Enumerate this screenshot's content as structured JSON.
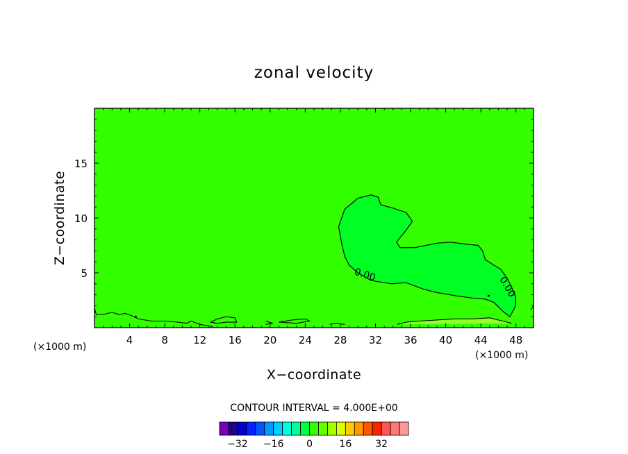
{
  "chart_data": {
    "type": "heatmap",
    "title": "zonal velocity",
    "xlabel": "X−coordinate",
    "ylabel": "Z−coordinate",
    "x_unit_left": "(×1000 m)",
    "x_unit_right": "(×1000 m)",
    "xlim": [
      0,
      50
    ],
    "ylim": [
      0,
      20
    ],
    "x_ticks": [
      4,
      8,
      12,
      16,
      20,
      24,
      28,
      32,
      36,
      40,
      44,
      48
    ],
    "y_ticks": [
      5,
      10,
      15
    ],
    "background_color": "#33ff00",
    "contour_labels": [
      {
        "text": "0.00",
        "x": 30.8,
        "y": 4.8
      },
      {
        "text": "0.00",
        "x": 47.0,
        "y": 3.7
      }
    ],
    "regions": [
      {
        "name": "region-slight-positive",
        "color": "#00ff22",
        "boundary": [
          [
            28.2,
            7.5
          ],
          [
            27.8,
            9.2
          ],
          [
            28.5,
            10.8
          ],
          [
            30.0,
            11.8
          ],
          [
            31.5,
            12.1
          ],
          [
            32.3,
            11.9
          ],
          [
            32.6,
            11.2
          ],
          [
            34.0,
            10.9
          ],
          [
            35.5,
            10.5
          ],
          [
            36.2,
            9.7
          ],
          [
            35.5,
            8.9
          ],
          [
            34.4,
            7.8
          ],
          [
            34.8,
            7.3
          ],
          [
            36.5,
            7.3
          ],
          [
            39.0,
            7.7
          ],
          [
            40.5,
            7.8
          ],
          [
            42.5,
            7.6
          ],
          [
            43.7,
            7.5
          ],
          [
            44.2,
            7.0
          ],
          [
            44.5,
            6.2
          ],
          [
            45.3,
            5.8
          ],
          [
            46.3,
            5.3
          ],
          [
            47.0,
            4.5
          ],
          [
            47.5,
            3.7
          ],
          [
            48.0,
            2.7
          ],
          [
            47.9,
            1.9
          ],
          [
            47.3,
            1.0
          ],
          [
            46.5,
            1.5
          ],
          [
            45.5,
            2.3
          ],
          [
            44.5,
            2.6
          ],
          [
            43.0,
            2.7
          ],
          [
            41.2,
            2.9
          ],
          [
            39.0,
            3.2
          ],
          [
            37.5,
            3.5
          ],
          [
            35.5,
            4.1
          ],
          [
            33.8,
            4.0
          ],
          [
            31.5,
            4.3
          ],
          [
            30.0,
            5.0
          ],
          [
            29.0,
            5.7
          ],
          [
            28.5,
            6.5
          ]
        ]
      }
    ],
    "surface_lines": [
      [
        [
          0,
          1.8
        ],
        [
          0.2,
          1.2
        ],
        [
          1.0,
          1.2
        ],
        [
          2.0,
          1.4
        ],
        [
          2.8,
          1.2
        ],
        [
          3.5,
          1.3
        ],
        [
          4.2,
          1.1
        ],
        [
          5.0,
          0.8
        ],
        [
          6.5,
          0.6
        ],
        [
          8.0,
          0.6
        ],
        [
          9.5,
          0.5
        ],
        [
          10.5,
          0.4
        ],
        [
          11.0,
          0.6
        ],
        [
          12.0,
          0.3
        ],
        [
          13.5,
          0.1
        ]
      ],
      [
        [
          13.2,
          0.5
        ],
        [
          14.0,
          0.8
        ],
        [
          15.0,
          1.0
        ],
        [
          16.0,
          0.9
        ],
        [
          16.2,
          0.5
        ],
        [
          15.0,
          0.5
        ],
        [
          14.0,
          0.4
        ],
        [
          13.2,
          0.5
        ]
      ],
      [
        [
          21.0,
          0.5
        ],
        [
          22.5,
          0.7
        ],
        [
          24.0,
          0.8
        ],
        [
          24.5,
          0.6
        ],
        [
          23.0,
          0.4
        ],
        [
          21.0,
          0.5
        ]
      ],
      [
        [
          19.5,
          0.6
        ],
        [
          20.3,
          0.4
        ],
        [
          19.5,
          0.3
        ]
      ],
      [
        [
          26.8,
          0.3
        ],
        [
          27.5,
          0.4
        ],
        [
          28.5,
          0.3
        ]
      ],
      [
        [
          34.5,
          0.3
        ],
        [
          35.5,
          0.5
        ],
        [
          37.0,
          0.6
        ],
        [
          39.0,
          0.7
        ],
        [
          41.0,
          0.8
        ],
        [
          43.0,
          0.8
        ],
        [
          45.0,
          0.9
        ],
        [
          46.5,
          0.6
        ],
        [
          47.5,
          0.4
        ]
      ],
      [
        [
          49.7,
          1.6
        ],
        [
          50,
          2.0
        ]
      ]
    ],
    "small_marks": [
      [
        44.9,
        2.9
      ],
      [
        4.7,
        1.0
      ]
    ],
    "colorbar": {
      "label": "CONTOUR INTERVAL = 4.000E+00",
      "colors": [
        "#7700bb",
        "#220088",
        "#0000cc",
        "#0022ff",
        "#0055ff",
        "#0099ff",
        "#00ccff",
        "#00ffdd",
        "#00ff99",
        "#00ff44",
        "#33ff00",
        "#66ff00",
        "#aaff00",
        "#ddff00",
        "#ffcc00",
        "#ff9900",
        "#ff5500",
        "#ff2200",
        "#ff5555",
        "#ff7777",
        "#ff9999"
      ],
      "tick_labels": [
        "−32",
        "−16",
        "0",
        "16",
        "32"
      ],
      "tick_values": [
        -32,
        -16,
        0,
        16,
        32
      ]
    }
  }
}
